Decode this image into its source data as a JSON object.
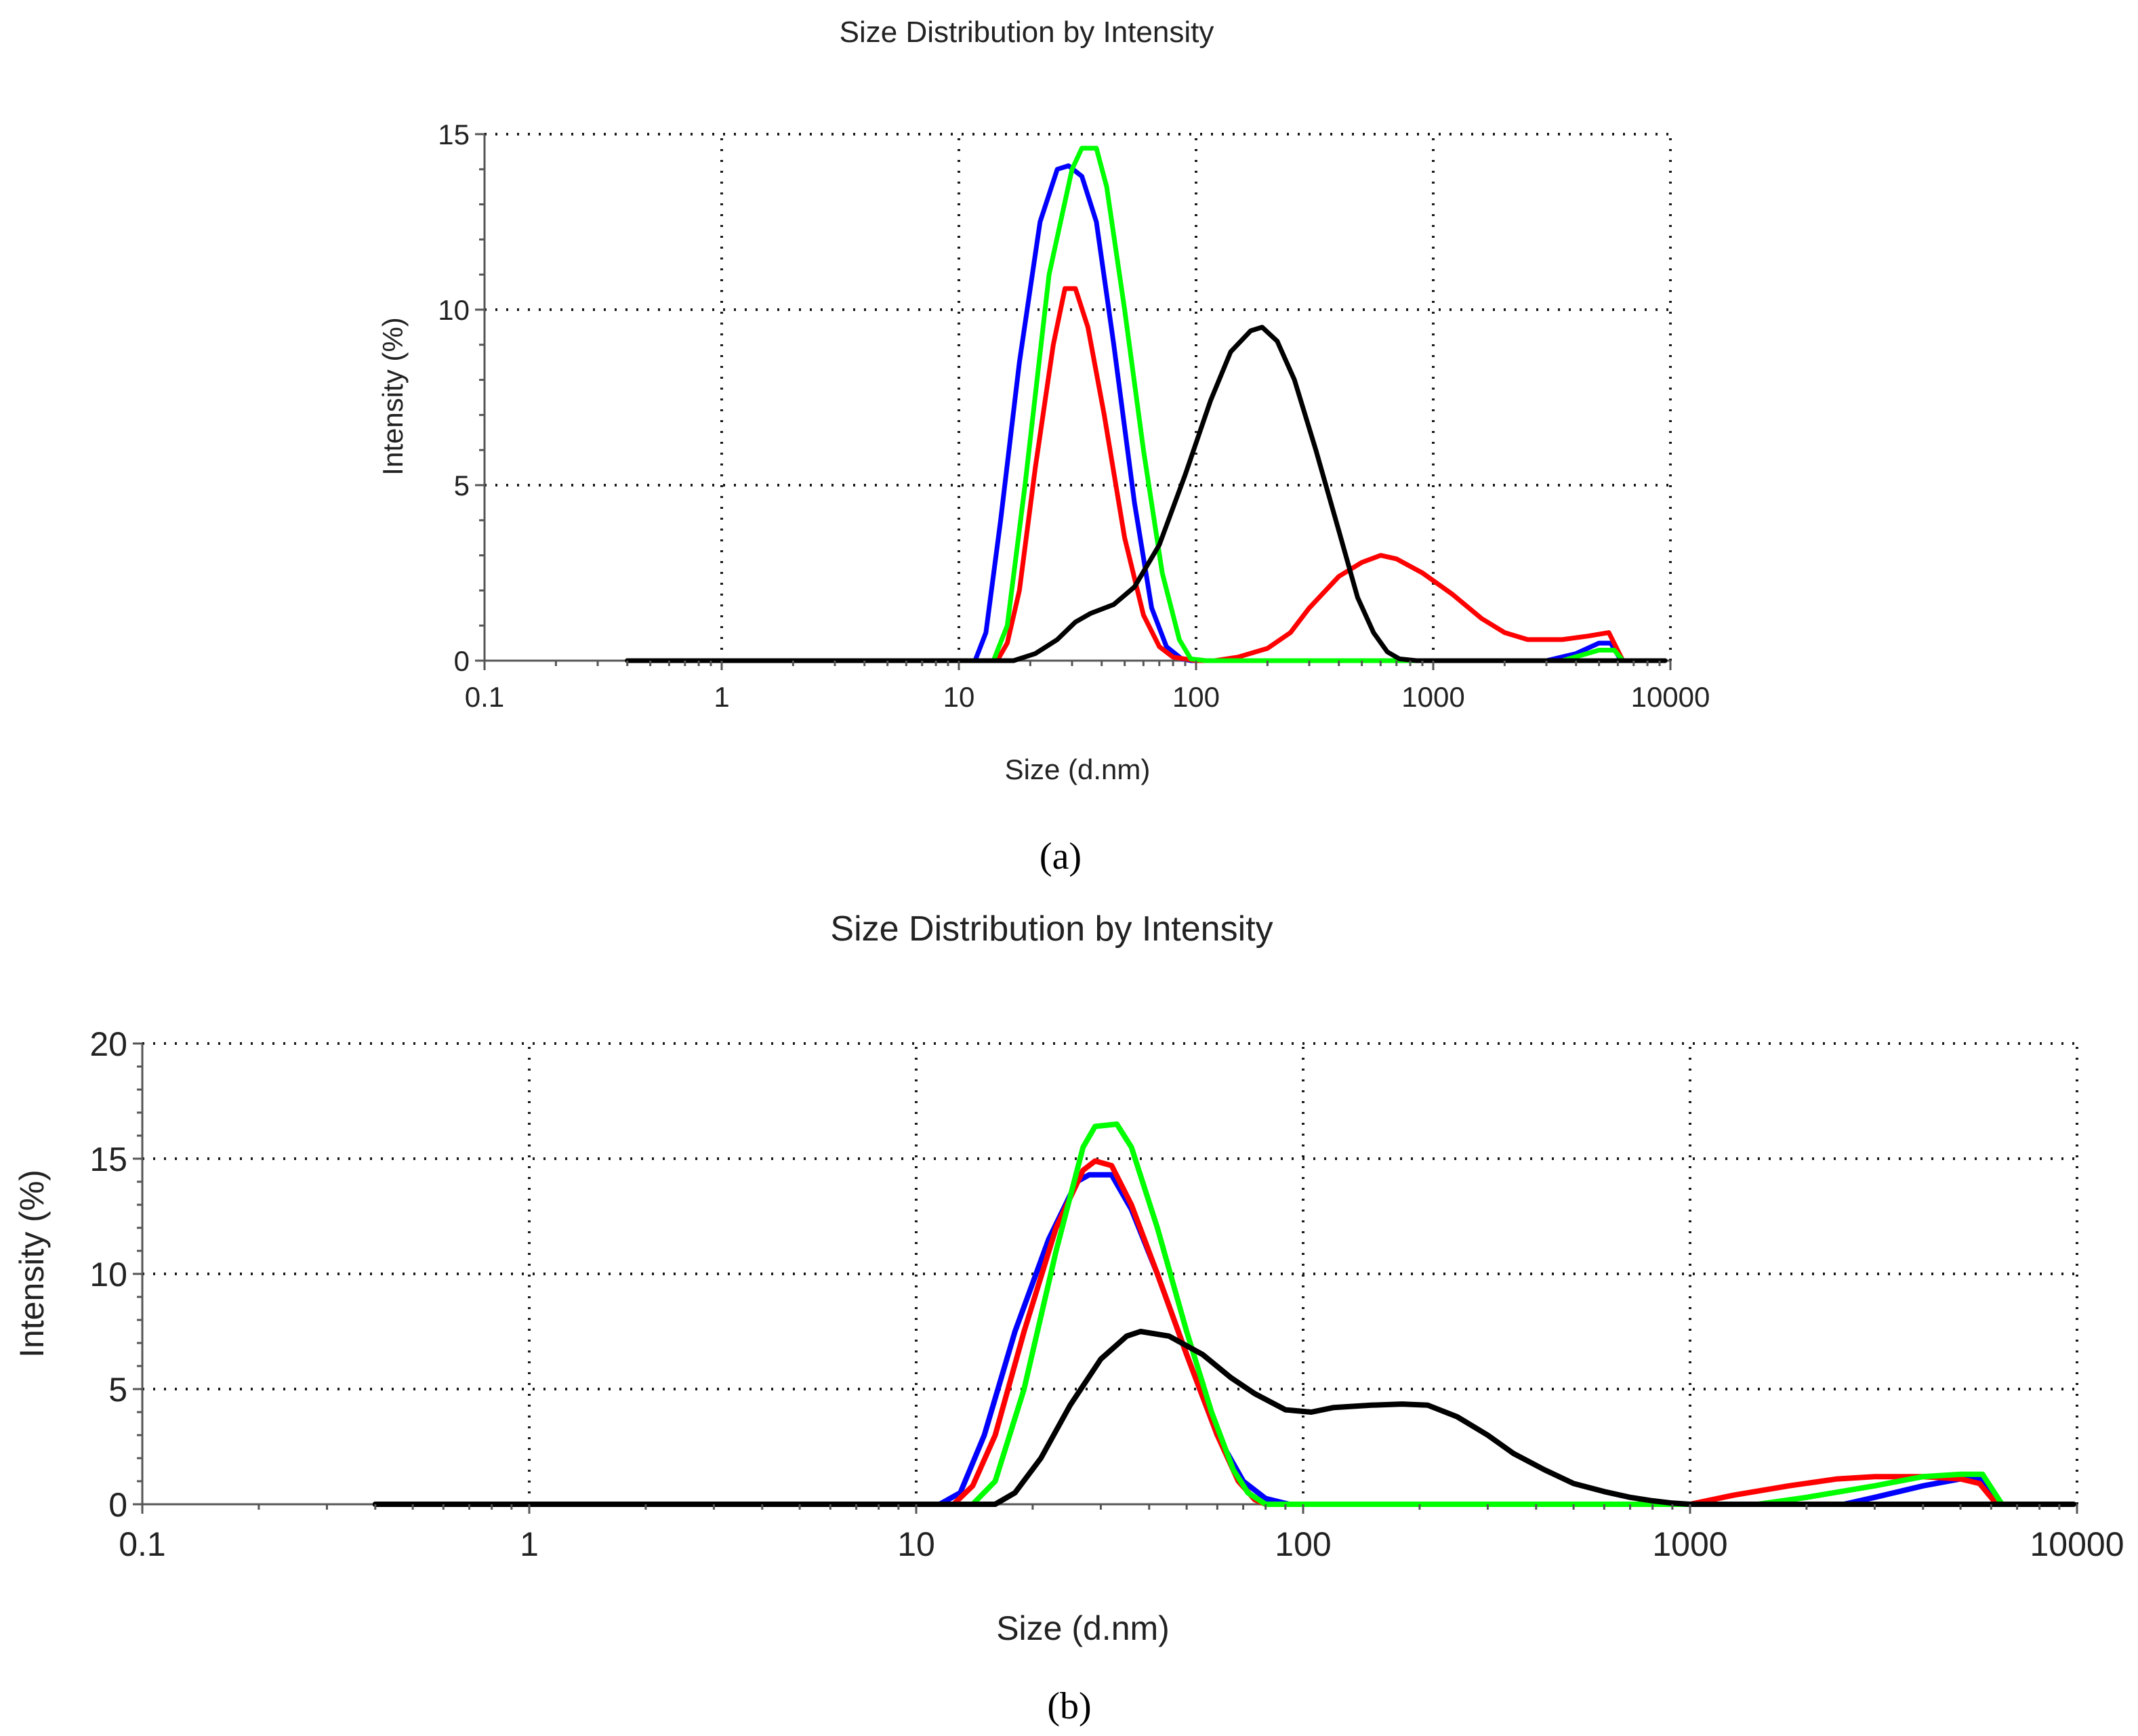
{
  "colors": {
    "black": "#000000",
    "red": "#ff0000",
    "blue": "#0000ff",
    "green": "#00ff00"
  },
  "chart_data": [
    {
      "type": "line",
      "panel_label": "(a)",
      "title": "Size Distribution by Intensity",
      "xlabel": "Size (d.nm)",
      "ylabel": "Intensity (%)",
      "xscale": "log",
      "xlim": [
        0.1,
        10000
      ],
      "ylim": [
        0,
        15
      ],
      "xticks": [
        0.1,
        1,
        10,
        100,
        1000,
        10000
      ],
      "xtick_labels": [
        "0.1",
        "1",
        "10",
        "100",
        "1000",
        "10000"
      ],
      "yticks": [
        0,
        5,
        10,
        15
      ],
      "ytick_labels": [
        "0",
        "5",
        "10",
        "15"
      ],
      "grid": true,
      "series": [
        {
          "name": "blue",
          "color": "blue",
          "points": [
            [
              0.4,
              0
            ],
            [
              11.7,
              0
            ],
            [
              13,
              0.8
            ],
            [
              15,
              4
            ],
            [
              18,
              8.5
            ],
            [
              22,
              12.5
            ],
            [
              26,
              14
            ],
            [
              29,
              14.1
            ],
            [
              33,
              13.8
            ],
            [
              38,
              12.5
            ],
            [
              45,
              9
            ],
            [
              55,
              4.5
            ],
            [
              65,
              1.5
            ],
            [
              75,
              0.4
            ],
            [
              87,
              0.05
            ],
            [
              95,
              0
            ],
            [
              3000,
              0
            ],
            [
              4000,
              0.2
            ],
            [
              5000,
              0.5
            ],
            [
              5600,
              0.5
            ],
            [
              6200,
              0
            ]
          ]
        },
        {
          "name": "green",
          "color": "green",
          "points": [
            [
              0.4,
              0
            ],
            [
              14,
              0
            ],
            [
              16,
              1
            ],
            [
              19,
              5
            ],
            [
              24,
              11
            ],
            [
              30,
              14
            ],
            [
              33,
              14.6
            ],
            [
              38,
              14.6
            ],
            [
              42,
              13.5
            ],
            [
              50,
              10
            ],
            [
              60,
              6
            ],
            [
              72,
              2.5
            ],
            [
              85,
              0.6
            ],
            [
              95,
              0.05
            ],
            [
              110,
              0
            ],
            [
              3500,
              0
            ],
            [
              5000,
              0.3
            ],
            [
              5800,
              0.3
            ],
            [
              6300,
              0
            ]
          ]
        },
        {
          "name": "red",
          "color": "red",
          "points": [
            [
              0.4,
              0
            ],
            [
              14.5,
              0
            ],
            [
              16,
              0.5
            ],
            [
              18,
              2
            ],
            [
              21,
              5.5
            ],
            [
              25,
              9
            ],
            [
              28,
              10.6
            ],
            [
              31,
              10.6
            ],
            [
              35,
              9.5
            ],
            [
              41,
              7
            ],
            [
              50,
              3.5
            ],
            [
              60,
              1.3
            ],
            [
              70,
              0.4
            ],
            [
              80,
              0.1
            ],
            [
              100,
              0
            ],
            [
              120,
              0
            ],
            [
              150,
              0.1
            ],
            [
              200,
              0.35
            ],
            [
              250,
              0.8
            ],
            [
              300,
              1.5
            ],
            [
              400,
              2.4
            ],
            [
              500,
              2.8
            ],
            [
              600,
              3
            ],
            [
              700,
              2.9
            ],
            [
              900,
              2.5
            ],
            [
              1200,
              1.9
            ],
            [
              1600,
              1.2
            ],
            [
              2000,
              0.8
            ],
            [
              2500,
              0.6
            ],
            [
              3500,
              0.6
            ],
            [
              4500,
              0.7
            ],
            [
              5500,
              0.8
            ],
            [
              6300,
              0
            ]
          ]
        },
        {
          "name": "black",
          "color": "black",
          "points": [
            [
              0.4,
              0
            ],
            [
              17,
              0
            ],
            [
              21,
              0.2
            ],
            [
              26,
              0.6
            ],
            [
              31,
              1.1
            ],
            [
              36,
              1.35
            ],
            [
              45,
              1.6
            ],
            [
              55,
              2.1
            ],
            [
              70,
              3.3
            ],
            [
              90,
              5.3
            ],
            [
              115,
              7.4
            ],
            [
              140,
              8.8
            ],
            [
              170,
              9.4
            ],
            [
              190,
              9.5
            ],
            [
              220,
              9.1
            ],
            [
              260,
              8
            ],
            [
              320,
              6
            ],
            [
              400,
              3.7
            ],
            [
              480,
              1.8
            ],
            [
              560,
              0.8
            ],
            [
              640,
              0.25
            ],
            [
              720,
              0.05
            ],
            [
              850,
              0
            ],
            [
              9500,
              0
            ]
          ]
        }
      ]
    },
    {
      "type": "line",
      "panel_label": "(b)",
      "title": "Size Distribution by Intensity",
      "xlabel": "Size (d.nm)",
      "ylabel": "Intensity (%)",
      "xscale": "log",
      "xlim": [
        0.1,
        10000
      ],
      "ylim": [
        0,
        20
      ],
      "xticks": [
        0.1,
        1,
        10,
        100,
        1000,
        10000
      ],
      "xtick_labels": [
        "0.1",
        "1",
        "10",
        "100",
        "1000",
        "10000"
      ],
      "yticks": [
        0,
        5,
        10,
        15,
        20
      ],
      "ytick_labels": [
        "0",
        "5",
        "10",
        "15",
        "20"
      ],
      "grid": true,
      "series": [
        {
          "name": "blue",
          "color": "blue",
          "points": [
            [
              0.4,
              0
            ],
            [
              11.5,
              0
            ],
            [
              13,
              0.5
            ],
            [
              15,
              3
            ],
            [
              18,
              7.5
            ],
            [
              22,
              11.5
            ],
            [
              26,
              14
            ],
            [
              28,
              14.3
            ],
            [
              32,
              14.3
            ],
            [
              36,
              12.8
            ],
            [
              42,
              10
            ],
            [
              50,
              6.5
            ],
            [
              60,
              3
            ],
            [
              70,
              1
            ],
            [
              80,
              0.25
            ],
            [
              92,
              0
            ],
            [
              2500,
              0
            ],
            [
              3000,
              0.3
            ],
            [
              4000,
              0.8
            ],
            [
              5000,
              1.1
            ],
            [
              5700,
              1.1
            ],
            [
              6300,
              0
            ]
          ]
        },
        {
          "name": "red",
          "color": "red",
          "points": [
            [
              0.4,
              0
            ],
            [
              12.5,
              0
            ],
            [
              14,
              0.8
            ],
            [
              16,
              3
            ],
            [
              19,
              7.5
            ],
            [
              23,
              12
            ],
            [
              27,
              14.5
            ],
            [
              29,
              14.9
            ],
            [
              32,
              14.7
            ],
            [
              36,
              13
            ],
            [
              42,
              10
            ],
            [
              50,
              6.5
            ],
            [
              60,
              3
            ],
            [
              68,
              1
            ],
            [
              75,
              0.2
            ],
            [
              80,
              0
            ],
            [
              1000,
              0
            ],
            [
              1300,
              0.4
            ],
            [
              1800,
              0.8
            ],
            [
              2400,
              1.1
            ],
            [
              3000,
              1.2
            ],
            [
              4000,
              1.2
            ],
            [
              5000,
              1.1
            ],
            [
              5600,
              0.9
            ],
            [
              6200,
              0
            ]
          ]
        },
        {
          "name": "green",
          "color": "green",
          "points": [
            [
              0.4,
              0
            ],
            [
              14,
              0
            ],
            [
              16,
              1
            ],
            [
              19,
              5
            ],
            [
              23,
              11
            ],
            [
              27,
              15.5
            ],
            [
              29,
              16.4
            ],
            [
              33,
              16.5
            ],
            [
              36,
              15.5
            ],
            [
              42,
              12
            ],
            [
              50,
              7.5
            ],
            [
              58,
              4
            ],
            [
              66,
              1.5
            ],
            [
              72,
              0.5
            ],
            [
              80,
              0
            ],
            [
              1500,
              0
            ],
            [
              2000,
              0.3
            ],
            [
              3000,
              0.8
            ],
            [
              4000,
              1.2
            ],
            [
              5000,
              1.3
            ],
            [
              5700,
              1.3
            ],
            [
              6400,
              0
            ]
          ]
        },
        {
          "name": "black",
          "color": "black",
          "points": [
            [
              0.4,
              0
            ],
            [
              16,
              0
            ],
            [
              18,
              0.5
            ],
            [
              21,
              2
            ],
            [
              25,
              4.3
            ],
            [
              30,
              6.3
            ],
            [
              35,
              7.3
            ],
            [
              38,
              7.5
            ],
            [
              45,
              7.3
            ],
            [
              55,
              6.5
            ],
            [
              65,
              5.5
            ],
            [
              75,
              4.8
            ],
            [
              90,
              4.1
            ],
            [
              105,
              4
            ],
            [
              120,
              4.2
            ],
            [
              150,
              4.3
            ],
            [
              180,
              4.35
            ],
            [
              210,
              4.3
            ],
            [
              250,
              3.8
            ],
            [
              300,
              3
            ],
            [
              350,
              2.2
            ],
            [
              420,
              1.5
            ],
            [
              500,
              0.9
            ],
            [
              600,
              0.55
            ],
            [
              700,
              0.3
            ],
            [
              800,
              0.15
            ],
            [
              900,
              0.05
            ],
            [
              1000,
              0
            ],
            [
              9800,
              0
            ]
          ]
        }
      ]
    }
  ]
}
